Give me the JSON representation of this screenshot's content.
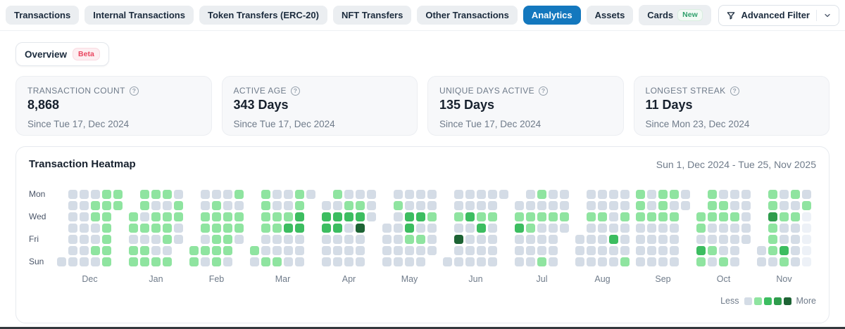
{
  "nav": {
    "tabs": [
      {
        "label": "Transactions",
        "active": false
      },
      {
        "label": "Internal Transactions",
        "active": false
      },
      {
        "label": "Token Transfers (ERC-20)",
        "active": false
      },
      {
        "label": "NFT Transfers",
        "active": false
      },
      {
        "label": "Other Transactions",
        "active": false
      },
      {
        "label": "Analytics",
        "active": true
      },
      {
        "label": "Assets",
        "active": false
      },
      {
        "label": "Cards",
        "active": false,
        "badge": "New"
      }
    ],
    "advanced_filter": {
      "label": "Advanced Filter"
    }
  },
  "subnav": {
    "overview_label": "Overview",
    "beta_badge": "Beta"
  },
  "stat_cards": [
    {
      "label": "TRANSACTION COUNT",
      "value": "8,868",
      "subtext": "Since Tue 17, Dec 2024"
    },
    {
      "label": "ACTIVE AGE",
      "value": "343 Days",
      "subtext": "Since Tue 17, Dec 2024"
    },
    {
      "label": "UNIQUE DAYS ACTIVE",
      "value": "135 Days",
      "subtext": "Since Tue 17, Dec 2024"
    },
    {
      "label": "LONGEST STREAK",
      "value": "11 Days",
      "subtext": "Since Mon 23, Dec 2024"
    }
  ],
  "heatmap_card": {
    "title": "Transaction Heatmap",
    "date_range": "Sun 1, Dec 2024 - Tue 25, Nov 2025",
    "legend": {
      "less": "Less",
      "more": "More"
    }
  },
  "colors": {
    "active_tab_blue": "#1478be",
    "beta_red": "#e9455f",
    "new_badge_green": "#2fa06c"
  },
  "chart_data": {
    "type": "heatmap",
    "title": "Transaction Heatmap",
    "date_range": "Sun 1, Dec 2024 - Tue 25, Nov 2025",
    "row_order": [
      "Mon",
      "Tue",
      "Wed",
      "Thu",
      "Fri",
      "Sat",
      "Sun"
    ],
    "weekday_labels": [
      "Mon",
      "Wed",
      "Fri",
      "Sun"
    ],
    "cell_key": ". = no cell, 0 = no activity, 1-4 = increasing activity, f = future day",
    "level_colors": {
      "0": "#d4dce6",
      "1": "#8fe4a0",
      "2": "#3cbd60",
      "3": "#2e9c4c",
      "4": "#1d6334",
      "f": "#edf1f7"
    },
    "legend_levels": [
      "0",
      "1",
      "2",
      "3",
      "4"
    ],
    "months": [
      {
        "label": "Dec",
        "rows": [
          ".00011",
          ".00111",
          ".0011.",
          ".0001.",
          ".0001.",
          ".0011.",
          "00001."
        ]
      },
      {
        "label": "Jan",
        "rows": [
          ".1110",
          ".1001",
          "10111",
          "11110",
          "00010",
          "1100.",
          "1111."
        ]
      },
      {
        "label": "Feb",
        "rows": [
          ".0001",
          ".0100",
          ".1111",
          ".1111",
          ".0110",
          "1111.",
          "1010."
        ]
      },
      {
        "label": "Mar",
        "rows": [
          ".10010",
          ".1001.",
          ".1112.",
          ".1122.",
          ".0000.",
          "10000.",
          "01100."
        ]
      },
      {
        "label": "Apr",
        "rows": [
          ".1000",
          "00110",
          "22220",
          "2204.",
          "0000.",
          "0000.",
          "0000."
        ]
      },
      {
        "label": "May",
        "rows": [
          ".0000",
          ".1000",
          ".0221",
          "00200",
          "00110",
          "00000",
          "0000."
        ]
      },
      {
        "label": "Jun",
        "rows": [
          ".00000",
          ".0000.",
          ".1211.",
          ".0020.",
          ".4000.",
          ".0000.",
          "00000."
        ]
      },
      {
        "label": "Jul",
        "rows": [
          ".0100",
          "00000",
          "11111",
          "21000",
          "0000.",
          "0000.",
          "0010."
        ]
      },
      {
        "label": "Aug",
        "rows": [
          ".0000",
          ".0000",
          ".1101",
          ".0000",
          "00020",
          "00000",
          "00001"
        ]
      },
      {
        "label": "Sep",
        "rows": [
          "10110",
          "10100",
          "1111.",
          "0000.",
          "0000.",
          "0000.",
          "0000."
        ]
      },
      {
        "label": "Oct",
        "rows": [
          ".1000",
          ".1100",
          "11110",
          "10000",
          "00000",
          "2100.",
          "1010."
        ]
      },
      {
        "label": "Nov",
        "rows": [
          ".1010",
          ".1001",
          ".311f",
          ".100f",
          ".100f",
          "0120f",
          "0010f"
        ]
      }
    ]
  }
}
